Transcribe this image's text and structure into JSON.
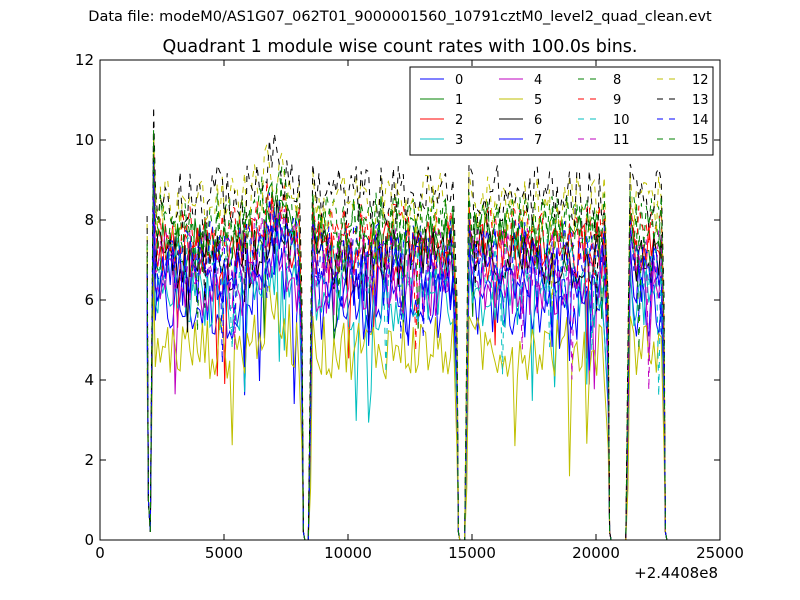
{
  "suptitle": "Data file: modeM0/AS1G07_062T01_9000001560_10791cztM0_level2_quad_clean.evt",
  "chart_data": {
    "type": "line",
    "title": "Quadrant 1 module wise count rates with 100.0s bins.",
    "xlabel": "",
    "ylabel": "",
    "xlim": [
      0,
      25000
    ],
    "ylim": [
      0,
      12
    ],
    "x_ticks": [
      0,
      5000,
      10000,
      15000,
      20000,
      25000
    ],
    "x_tick_labels": [
      "0",
      "5000",
      "10000",
      "15000",
      "20000",
      "25000"
    ],
    "y_ticks": [
      0,
      2,
      4,
      6,
      8,
      10,
      12
    ],
    "y_tick_labels": [
      "0",
      "2",
      "4",
      "6",
      "8",
      "10",
      "12"
    ],
    "x_offset_label": "+2.4408e8",
    "grid": false,
    "legend": {
      "placement": "top-right",
      "columns": 4
    },
    "segments": [
      [
        1900,
        8200
      ],
      [
        8400,
        14450
      ],
      [
        14700,
        20550
      ],
      [
        21200,
        22800
      ]
    ],
    "series": [
      {
        "name": "0",
        "color": "#0000ff",
        "dash": "solid",
        "base": 5.8
      },
      {
        "name": "1",
        "color": "#008000",
        "dash": "solid",
        "base": 7.4
      },
      {
        "name": "2",
        "color": "#ff0000",
        "dash": "solid",
        "base": 7.2
      },
      {
        "name": "3",
        "color": "#00bfbf",
        "dash": "solid",
        "base": 6.0
      },
      {
        "name": "4",
        "color": "#bf00bf",
        "dash": "solid",
        "base": 6.4
      },
      {
        "name": "5",
        "color": "#bfbf00",
        "dash": "solid",
        "base": 4.8
      },
      {
        "name": "6",
        "color": "#000000",
        "dash": "solid",
        "base": 7.0
      },
      {
        "name": "7",
        "color": "#0000ff",
        "dash": "solid",
        "base": 6.6
      },
      {
        "name": "8",
        "color": "#008000",
        "dash": "dashed",
        "base": 7.8
      },
      {
        "name": "9",
        "color": "#ff0000",
        "dash": "dashed",
        "base": 7.6
      },
      {
        "name": "10",
        "color": "#00bfbf",
        "dash": "dashed",
        "base": 6.8
      },
      {
        "name": "11",
        "color": "#bf00bf",
        "dash": "dashed",
        "base": 7.0
      },
      {
        "name": "12",
        "color": "#bfbf00",
        "dash": "dashed",
        "base": 8.4
      },
      {
        "name": "13",
        "color": "#000000",
        "dash": "dashed",
        "base": 8.6
      },
      {
        "name": "14",
        "color": "#0000ff",
        "dash": "dashed",
        "base": 7.2
      },
      {
        "name": "15",
        "color": "#008000",
        "dash": "dashed",
        "base": 7.9
      }
    ]
  }
}
